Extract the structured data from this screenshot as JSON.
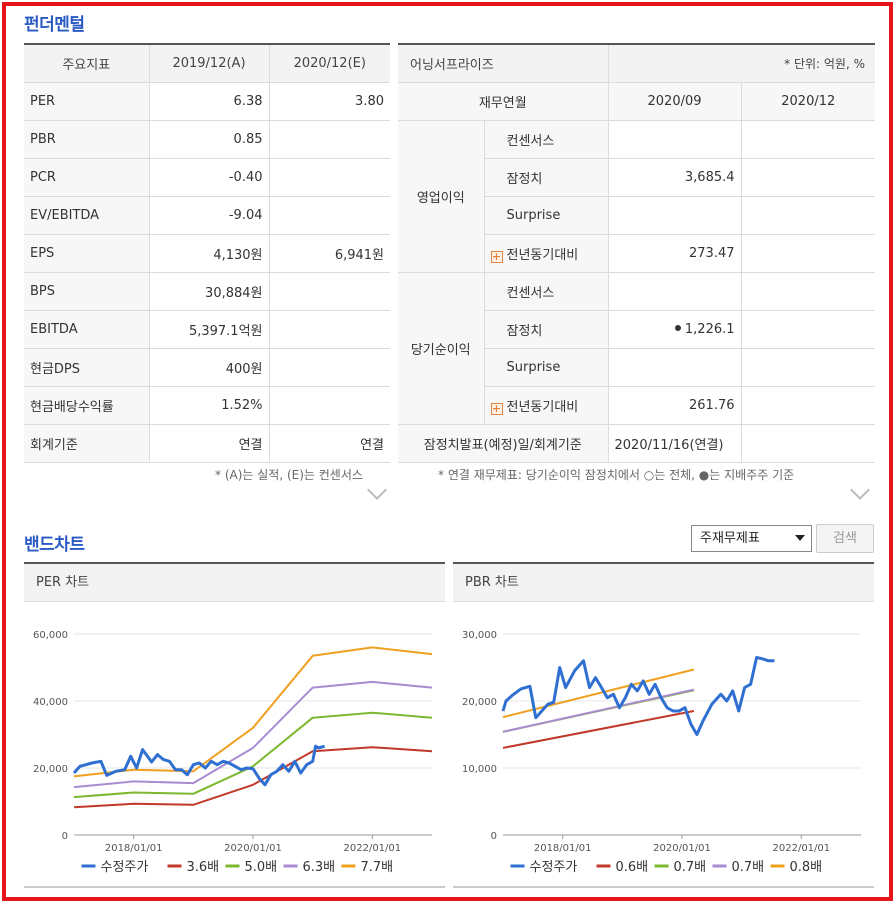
{
  "fundamentals": {
    "title": "펀더멘털",
    "indicators": {
      "headers": [
        "주요지표",
        "2019/12(A)",
        "2020/12(E)"
      ],
      "rows": [
        {
          "label": "PER",
          "v1": "6.38",
          "v2": "3.80"
        },
        {
          "label": "PBR",
          "v1": "0.85",
          "v2": ""
        },
        {
          "label": "PCR",
          "v1": "-0.40",
          "v2": ""
        },
        {
          "label": "EV/EBITDA",
          "v1": "-9.04",
          "v2": ""
        },
        {
          "label": "EPS",
          "v1": "4,130원",
          "v2": "6,941원"
        },
        {
          "label": "BPS",
          "v1": "30,884원",
          "v2": ""
        },
        {
          "label": "EBITDA",
          "v1": "5,397.1억원",
          "v2": ""
        },
        {
          "label": "현금DPS",
          "v1": "400원",
          "v2": ""
        },
        {
          "label": "현금배당수익률",
          "v1": "1.52%",
          "v2": ""
        },
        {
          "label": "회계기준",
          "v1": "연결",
          "v2": "연결"
        }
      ],
      "note": "* (A)는 실적, (E)는 컨센서스"
    },
    "earnings_surprise": {
      "title": "어닝서프라이즈",
      "unit": "* 단위: 억원, %",
      "headers": [
        "재무연월",
        "2020/09",
        "2020/12"
      ],
      "groups": [
        {
          "label": "영업이익",
          "rows": [
            {
              "label": "컨센서스",
              "v1": "",
              "v2": "",
              "type": "plain"
            },
            {
              "label": "잠정치",
              "v1": "3,685.4",
              "v2": "",
              "type": "plain"
            },
            {
              "label": "Surprise",
              "v1": "",
              "v2": "",
              "type": "plain"
            },
            {
              "label": "전년동기대비",
              "v1": "273.47",
              "v2": "",
              "type": "plus"
            }
          ]
        },
        {
          "label": "당기순이익",
          "rows": [
            {
              "label": "컨센서스",
              "v1": "",
              "v2": "",
              "type": "plain"
            },
            {
              "label": "잠정치",
              "v1": "1,226.1",
              "v2": "",
              "type": "dot"
            },
            {
              "label": "Surprise",
              "v1": "",
              "v2": "",
              "type": "plain"
            },
            {
              "label": "전년동기대비",
              "v1": "261.76",
              "v2": "",
              "type": "plus"
            }
          ]
        }
      ],
      "footer_label": "잠정치발표(예정)일/회계기준",
      "footer_value": "2020/11/16(연결)",
      "note": "* 연결 재무제표: 당기순이익 잠정치에서 ○는 전체, ●는 지배주주 기준"
    }
  },
  "band_chart": {
    "title": "밴드차트",
    "select_value": "주재무제표",
    "search_label": "검색"
  },
  "chart_data": [
    {
      "type": "line",
      "title": "PER 차트",
      "x_ticks": [
        "2018/01/01",
        "2020/01/01",
        "2022/01/01"
      ],
      "y_ticks": [
        "0",
        "20,000",
        "40,000",
        "60,000"
      ],
      "ylim": [
        0,
        60000
      ],
      "x_range": [
        2017.0,
        2023.0
      ],
      "series": [
        {
          "name": "수정주가",
          "color": "#2f6fd1",
          "x": [
            2017.0,
            2017.1,
            2017.3,
            2017.45,
            2017.55,
            2017.7,
            2017.85,
            2017.95,
            2018.05,
            2018.15,
            2018.3,
            2018.4,
            2018.5,
            2018.6,
            2018.7,
            2018.8,
            2018.9,
            2019.0,
            2019.1,
            2019.2,
            2019.3,
            2019.4,
            2019.5,
            2019.6,
            2019.7,
            2019.8,
            2019.9,
            2020.0,
            2020.1,
            2020.2,
            2020.3,
            2020.4,
            2020.5,
            2020.6,
            2020.7,
            2020.8,
            2020.9,
            2021.0,
            2021.05,
            2021.1,
            2021.2
          ],
          "values": [
            18500,
            20500,
            21500,
            22000,
            17800,
            19000,
            19500,
            23500,
            20000,
            25500,
            21800,
            24000,
            22500,
            22000,
            19500,
            19500,
            18000,
            21000,
            21500,
            20000,
            22000,
            21000,
            22000,
            21500,
            20500,
            19500,
            20000,
            19800,
            17000,
            15000,
            18000,
            19000,
            21000,
            19000,
            22000,
            18500,
            21000,
            22000,
            26500,
            26000,
            26500
          ]
        },
        {
          "name": "3.6배",
          "color": "#c0392b",
          "x": [
            2017.0,
            2018.0,
            2019.0,
            2020.0,
            2021.0,
            2022.0,
            2023.0
          ],
          "values": [
            8300,
            9300,
            9000,
            15000,
            25000,
            26200,
            25000
          ]
        },
        {
          "name": "5.0배",
          "color": "#7cb82f",
          "x": [
            2017.0,
            2018.0,
            2019.0,
            2020.0,
            2021.0,
            2022.0,
            2023.0
          ],
          "values": [
            11300,
            12700,
            12300,
            20500,
            35000,
            36500,
            35000
          ]
        },
        {
          "name": "6.3배",
          "color": "#a98bd1",
          "x": [
            2017.0,
            2018.0,
            2019.0,
            2020.0,
            2021.0,
            2022.0,
            2023.0
          ],
          "values": [
            14300,
            16000,
            15500,
            26000,
            44000,
            45700,
            44000
          ]
        },
        {
          "name": "7.7배",
          "color": "#f0a020",
          "x": [
            2017.0,
            2018.0,
            2019.0,
            2020.0,
            2021.0,
            2022.0,
            2023.0
          ],
          "values": [
            17500,
            19500,
            19000,
            32000,
            53500,
            56000,
            54000
          ]
        }
      ]
    },
    {
      "type": "line",
      "title": "PBR 차트",
      "x_ticks": [
        "2018/01/01",
        "2020/01/01",
        "2022/01/01"
      ],
      "y_ticks": [
        "0",
        "10,000",
        "20,000",
        "30,000"
      ],
      "ylim": [
        0,
        30000
      ],
      "x_range": [
        2017.0,
        2023.0
      ],
      "series": [
        {
          "name": "수정주가",
          "color": "#2f6fd1",
          "x": [
            2017.0,
            2017.05,
            2017.15,
            2017.3,
            2017.45,
            2017.55,
            2017.65,
            2017.75,
            2017.85,
            2017.95,
            2018.05,
            2018.2,
            2018.35,
            2018.45,
            2018.55,
            2018.65,
            2018.75,
            2018.85,
            2018.95,
            2019.05,
            2019.15,
            2019.25,
            2019.35,
            2019.45,
            2019.55,
            2019.65,
            2019.75,
            2019.85,
            2019.95,
            2020.05,
            2020.15,
            2020.25,
            2020.35,
            2020.5,
            2020.65,
            2020.75,
            2020.85,
            2020.95,
            2021.05,
            2021.15,
            2021.25,
            2021.35,
            2021.45,
            2021.55
          ],
          "values": [
            18500,
            20000,
            20800,
            21800,
            22200,
            17500,
            18500,
            19500,
            19800,
            25000,
            22000,
            24500,
            26000,
            22000,
            23500,
            22000,
            20500,
            21000,
            19000,
            20500,
            22500,
            21500,
            23000,
            21000,
            22500,
            20500,
            19000,
            18500,
            18500,
            19000,
            16500,
            15000,
            17000,
            19500,
            21000,
            20000,
            21500,
            18500,
            22000,
            22500,
            26500,
            26300,
            26000,
            26000
          ]
        },
        {
          "name": "0.6배",
          "color": "#c0392b",
          "x": [
            2017.0,
            2020.2
          ],
          "values": [
            13000,
            18500
          ]
        },
        {
          "name": "0.7배",
          "color": "#7cb82f",
          "x": [
            2017.0,
            2020.2
          ],
          "values": [
            15400,
            21600
          ]
        },
        {
          "name": "0.7배",
          "color": "#a98bd1",
          "x": [
            2017.0,
            2020.2
          ],
          "values": [
            15400,
            21700
          ]
        },
        {
          "name": "0.8배",
          "color": "#f0a020",
          "x": [
            2017.0,
            2020.2
          ],
          "values": [
            17600,
            24700
          ]
        }
      ]
    }
  ]
}
